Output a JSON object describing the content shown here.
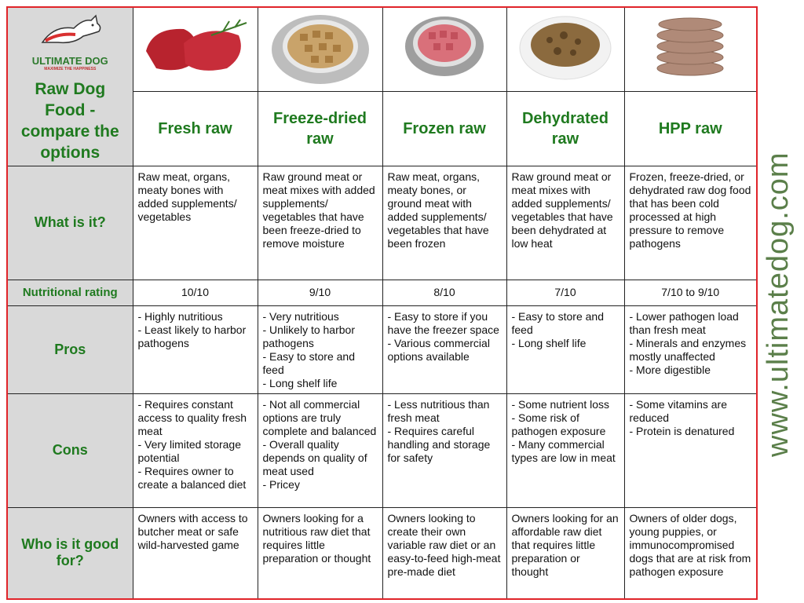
{
  "logo": {
    "name": "ULTIMATE DOG",
    "tagline": "MAXIMIZE THE HAPPINESS"
  },
  "title": "Raw Dog Food - compare the options",
  "url": "www.ultimatedog.com",
  "columns": [
    "Fresh raw",
    "Freeze-dried raw",
    "Frozen raw",
    "Dehydrated raw",
    "HPP raw"
  ],
  "rows": [
    {
      "label": "What is it?",
      "cells": [
        [
          "Raw meat, organs, meaty bones with added supplements/ vegetables"
        ],
        [
          "Raw ground meat or meat mixes with added supplements/ vegetables that have been freeze-dried to remove moisture"
        ],
        [
          "Raw meat, organs, meaty bones, or ground meat with added supplements/ vegetables that have been frozen"
        ],
        [
          "Raw ground meat or meat mixes with added supplements/ vegetables that have been dehydrated at low heat"
        ],
        [
          "Frozen, freeze-dried, or dehydrated raw dog food that has been cold processed at high pressure to remove pathogens"
        ]
      ]
    },
    {
      "label": "Nutritional rating",
      "cells": [
        [
          "10/10"
        ],
        [
          "9/10"
        ],
        [
          "8/10"
        ],
        [
          "7/10"
        ],
        [
          "7/10 to 9/10"
        ]
      ]
    },
    {
      "label": "Pros",
      "cells": [
        [
          "- Highly nutritious",
          "- Least likely to harbor pathogens"
        ],
        [
          "- Very nutritious",
          "- Unlikely to harbor pathogens",
          "- Easy to store and feed",
          "- Long shelf life"
        ],
        [
          "- Easy to store if you have the freezer space",
          "- Various commercial options available"
        ],
        [
          "- Easy to store and feed",
          "- Long shelf life"
        ],
        [
          "- Lower pathogen load than fresh meat",
          "- Minerals and enzymes mostly unaffected",
          "- More digestible"
        ]
      ]
    },
    {
      "label": "Cons",
      "cells": [
        [
          "- Requires constant access to quality fresh meat",
          "- Very limited storage potential",
          "- Requires owner to create a balanced diet"
        ],
        [
          "- Not all commercial options are truly complete and balanced",
          "- Overall quality depends on quality of meat used",
          "- Pricey"
        ],
        [
          "- Less nutritious than fresh meat",
          "- Requires careful handling and storage for safety"
        ],
        [
          "- Some nutrient loss",
          "- Some risk of pathogen exposure",
          "- Many commercial types are low in meat"
        ],
        [
          "- Some vitamins are reduced",
          "- Protein is denatured"
        ]
      ]
    },
    {
      "label": "Who is it good for?",
      "cells": [
        [
          "Owners with access to butcher meat or safe wild-harvested game"
        ],
        [
          "Owners looking for a nutritious raw diet that requires little preparation or thought"
        ],
        [
          "Owners looking to create their own variable raw diet or an easy-to-feed high-meat pre-made diet"
        ],
        [
          "Owners looking for an affordable raw diet that requires little preparation or thought"
        ],
        [
          "Owners of older dogs, young puppies, or immunocompromised dogs that are at risk from pathogen exposure"
        ]
      ]
    }
  ]
}
